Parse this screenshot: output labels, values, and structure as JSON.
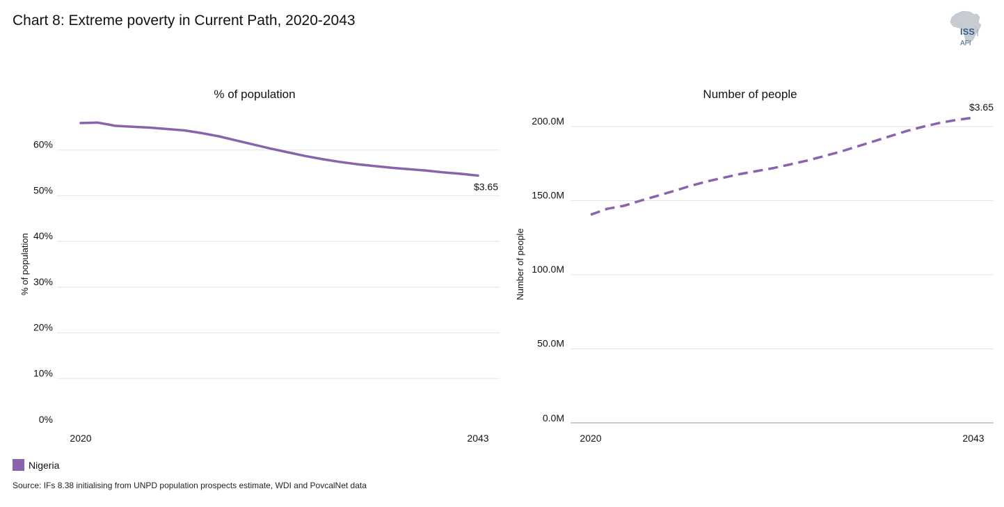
{
  "title": "Chart 8: Extreme poverty in Current Path, 2020-2043",
  "logo": {
    "text_main": "ISS",
    "text_sub": "AFI"
  },
  "colors": {
    "series": "#8a63ad",
    "grid": "#e3e3e3",
    "axis": "#999999",
    "text": "#111111"
  },
  "legend": {
    "label": "Nigeria"
  },
  "source": "Source: IFs 8.38 initialising from UNPD population prospects estimate, WDI and PovcalNet data",
  "chart_data": [
    {
      "type": "line",
      "title": "% of population",
      "ylabel": "% of population",
      "xlabel": "",
      "ylim": [
        0,
        70
      ],
      "xlim": [
        2020,
        2043
      ],
      "y_ticks": [
        0,
        10,
        20,
        30,
        40,
        50,
        60
      ],
      "y_tick_labels": [
        "0%",
        "10%",
        "20%",
        "30%",
        "40%",
        "50%",
        "60%"
      ],
      "x_tick_labels": [
        "2020",
        "2043"
      ],
      "line_style": "solid",
      "end_label": "$3.65",
      "series": [
        {
          "name": "Nigeria",
          "x": [
            2020,
            2021,
            2022,
            2023,
            2024,
            2025,
            2026,
            2027,
            2028,
            2029,
            2030,
            2031,
            2032,
            2033,
            2034,
            2035,
            2036,
            2037,
            2038,
            2039,
            2040,
            2041,
            2042,
            2043
          ],
          "values": [
            65.9,
            66.0,
            65.3,
            65.1,
            64.9,
            64.6,
            64.3,
            63.7,
            63.0,
            62.1,
            61.2,
            60.3,
            59.5,
            58.7,
            58.0,
            57.4,
            56.9,
            56.5,
            56.1,
            55.8,
            55.5,
            55.1,
            54.8,
            54.4
          ]
        }
      ]
    },
    {
      "type": "line",
      "title": "Number of people",
      "ylabel": "Number of people",
      "xlabel": "",
      "ylim": [
        0,
        215
      ],
      "xlim": [
        2020,
        2043
      ],
      "y_ticks": [
        0,
        50,
        100,
        150,
        200
      ],
      "y_tick_labels": [
        "0.0M",
        "50.0M",
        "100.0M",
        "150.0M",
        "200.0M"
      ],
      "x_tick_labels": [
        "2020",
        "2043"
      ],
      "line_style": "dashed",
      "end_label": "$3.65",
      "series": [
        {
          "name": "Nigeria",
          "x": [
            2020,
            2021,
            2022,
            2023,
            2024,
            2025,
            2026,
            2027,
            2028,
            2029,
            2030,
            2031,
            2032,
            2033,
            2034,
            2035,
            2036,
            2037,
            2038,
            2039,
            2040,
            2041,
            2042,
            2043
          ],
          "values": [
            140.5,
            144.5,
            146.5,
            150.0,
            153.2,
            156.5,
            160.0,
            163.0,
            165.5,
            168.0,
            170.0,
            172.0,
            174.5,
            177.0,
            180.0,
            183.0,
            186.5,
            190.0,
            193.5,
            197.0,
            200.0,
            202.5,
            204.5,
            206.0
          ]
        }
      ]
    }
  ]
}
